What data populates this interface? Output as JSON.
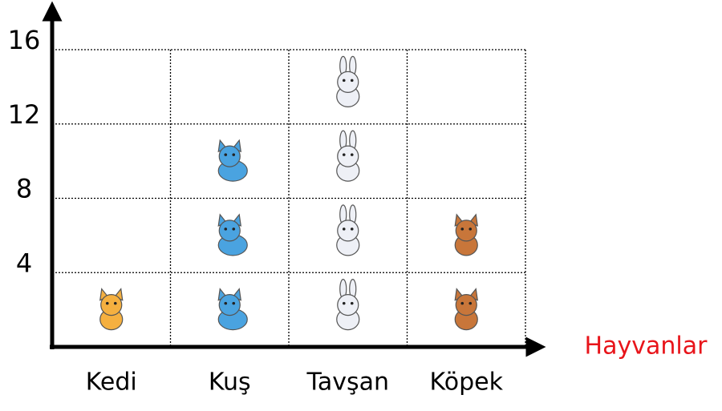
{
  "chart_data": {
    "type": "pictograph",
    "x_label": "Hayvanlar",
    "categories": [
      "Kedi",
      "Kuş",
      "Tavşan",
      "Köpek"
    ],
    "values": [
      4,
      12,
      16,
      8
    ],
    "colors": [
      "#f5b040",
      "#4aa3e0",
      "#eef0f6",
      "#c8763a"
    ],
    "ylim": [
      0,
      16
    ],
    "yticks": [
      4,
      8,
      12,
      16
    ],
    "grid": true
  }
}
